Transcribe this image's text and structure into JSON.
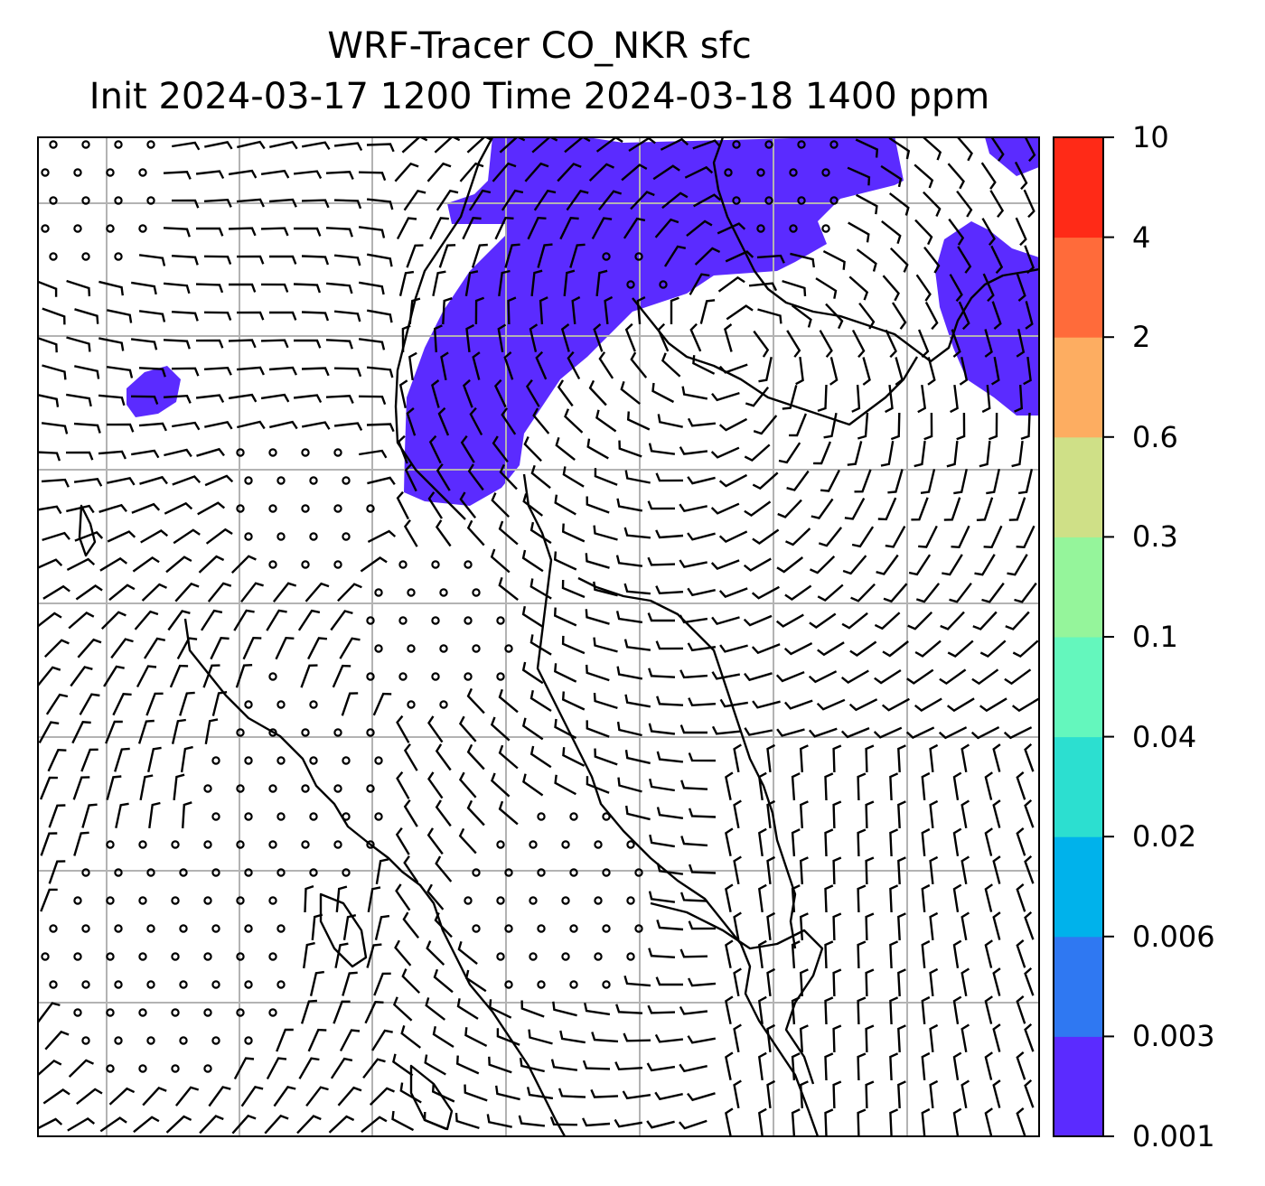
{
  "figure": {
    "title_line1": "WRF-Tracer CO_NKR sfc",
    "title_line2": "Init 2024-03-17 1200 Time 2024-03-18 1400 ppm"
  },
  "colorbar": {
    "levels": [
      "0.001",
      "0.003",
      "0.006",
      "0.02",
      "0.04",
      "0.1",
      "0.3",
      "0.6",
      "2",
      "4",
      "10"
    ],
    "colors": [
      "#5b2bff",
      "#2f78f2",
      "#00b2eb",
      "#2cdfd0",
      "#64f7bd",
      "#95f59b",
      "#cfe087",
      "#fdad61",
      "#ff6b3a",
      "#ff2a17"
    ]
  },
  "map": {
    "gridlines": true,
    "features": [
      "coastlines",
      "wind-barbs",
      "tracer-concentration-shading"
    ],
    "shaded_level": "0.001-0.003",
    "shading_color": "#5b2bff",
    "coast_color": "#000000",
    "grid_color": "#b3b3b3"
  }
}
